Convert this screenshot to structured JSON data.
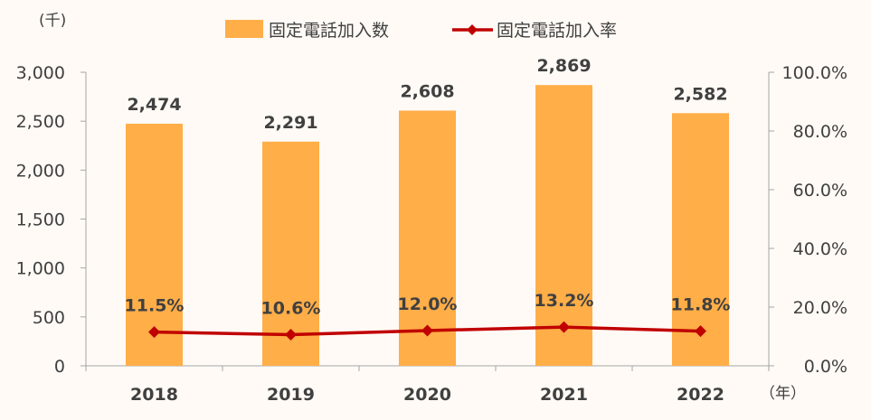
{
  "chart_data": {
    "type": "bar",
    "categories": [
      "2018",
      "2019",
      "2020",
      "2021",
      "2022"
    ],
    "series": [
      {
        "name": "固定電話加入数",
        "type": "bar",
        "axis": "left",
        "values": [
          2474,
          2291,
          2608,
          2869,
          2582
        ],
        "labels": [
          "2,474",
          "2,291",
          "2,608",
          "2,869",
          "2,582"
        ]
      },
      {
        "name": "固定電話加入率",
        "type": "line",
        "axis": "right",
        "values": [
          11.5,
          10.6,
          12.0,
          13.2,
          11.8
        ],
        "labels": [
          "11.5%",
          "10.6%",
          "12.0%",
          "13.2%",
          "11.8%"
        ]
      }
    ],
    "y_left": {
      "unit": "(千)",
      "ylim": [
        0,
        3000
      ],
      "ticks": [
        "0",
        "500",
        "1,000",
        "1,500",
        "2,000",
        "2,500",
        "3,000"
      ]
    },
    "y_right": {
      "ylim": [
        0,
        100
      ],
      "ticks": [
        "0.0%",
        "20.0%",
        "40.0%",
        "60.0%",
        "80.0%",
        "100.0%"
      ]
    },
    "x_unit": "（年）",
    "legend_position": "top",
    "grid": false,
    "colors": {
      "bar": "#ffae48",
      "line": "#c00000",
      "text": "#404040",
      "axis": "#a6a6a6",
      "background": "#fffaf5"
    }
  }
}
